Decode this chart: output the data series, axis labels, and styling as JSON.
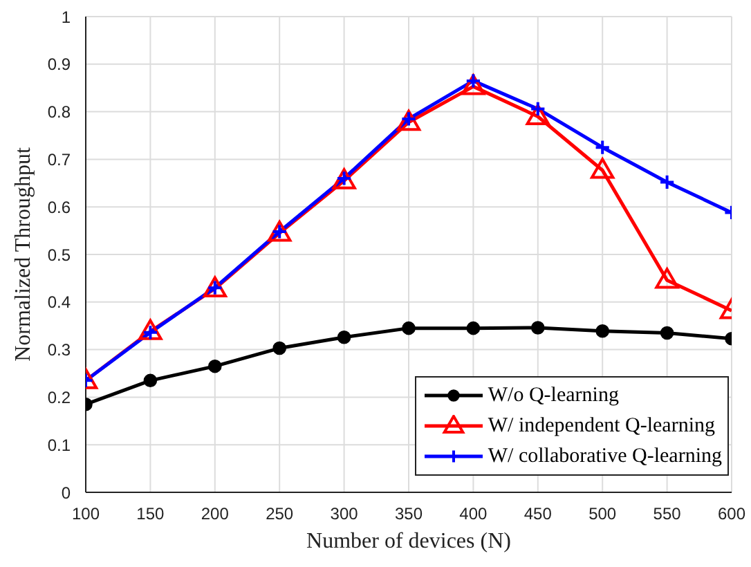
{
  "chart_data": {
    "type": "line",
    "xlabel": "Number of devices (N)",
    "ylabel": "Normalized Throughput",
    "x": [
      100,
      150,
      200,
      250,
      300,
      350,
      400,
      450,
      500,
      550,
      600
    ],
    "xlim": [
      100,
      600
    ],
    "xticks": [
      100,
      150,
      200,
      250,
      300,
      350,
      400,
      450,
      500,
      550,
      600
    ],
    "ylim": [
      0,
      1
    ],
    "yticks": [
      0,
      0.1,
      0.2,
      0.3,
      0.4,
      0.5,
      0.6,
      0.7,
      0.8,
      0.9,
      1
    ],
    "grid": true,
    "legend": "bottom right",
    "line_style": "solid",
    "series": [
      {
        "name": "W/o Q-learning",
        "color": "#000000",
        "marker": "circle",
        "values": [
          0.185,
          0.235,
          0.265,
          0.303,
          0.326,
          0.345,
          0.345,
          0.346,
          0.339,
          0.335,
          0.323
        ]
      },
      {
        "name": "W/ independent Q-learning",
        "color": "#ff0000",
        "marker": "triangle",
        "values": [
          0.235,
          0.338,
          0.428,
          0.545,
          0.655,
          0.778,
          0.853,
          0.79,
          0.677,
          0.446,
          0.382
        ]
      },
      {
        "name": "W/ collaborative Q-learning",
        "color": "#0000ff",
        "marker": "cross",
        "values": [
          0.235,
          0.336,
          0.43,
          0.548,
          0.66,
          0.785,
          0.865,
          0.806,
          0.725,
          0.652,
          0.588
        ]
      }
    ]
  }
}
